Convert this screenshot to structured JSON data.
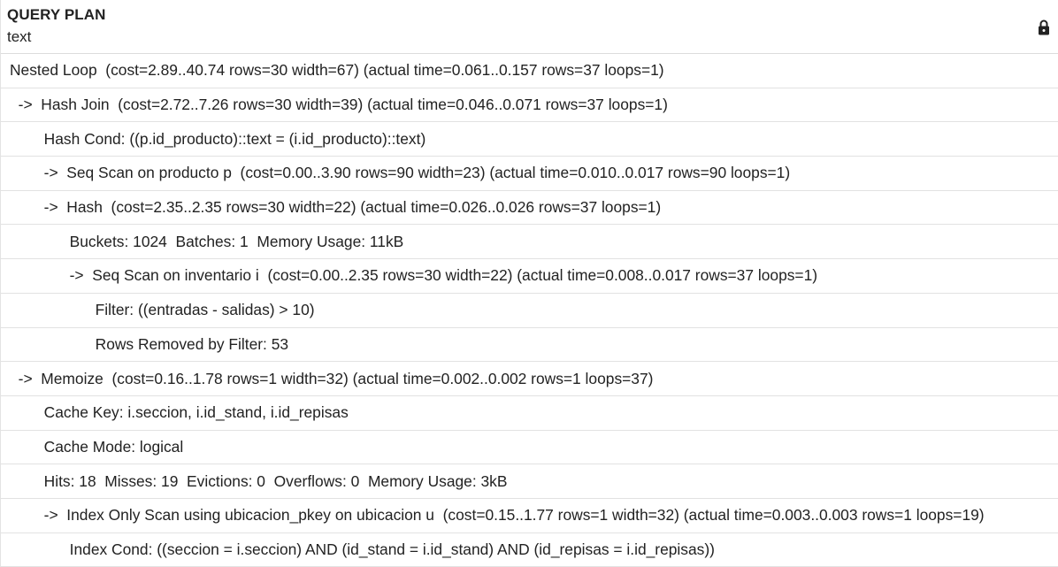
{
  "column": {
    "name": "QUERY PLAN",
    "type": "text",
    "lock_icon": "lock-icon"
  },
  "rows": [
    "Nested Loop  (cost=2.89..40.74 rows=30 width=67) (actual time=0.061..0.157 rows=37 loops=1)",
    "  ->  Hash Join  (cost=2.72..7.26 rows=30 width=39) (actual time=0.046..0.071 rows=37 loops=1)",
    "        Hash Cond: ((p.id_producto)::text = (i.id_producto)::text)",
    "        ->  Seq Scan on producto p  (cost=0.00..3.90 rows=90 width=23) (actual time=0.010..0.017 rows=90 loops=1)",
    "        ->  Hash  (cost=2.35..2.35 rows=30 width=22) (actual time=0.026..0.026 rows=37 loops=1)",
    "              Buckets: 1024  Batches: 1  Memory Usage: 11kB",
    "              ->  Seq Scan on inventario i  (cost=0.00..2.35 rows=30 width=22) (actual time=0.008..0.017 rows=37 loops=1)",
    "                    Filter: ((entradas - salidas) > 10)",
    "                    Rows Removed by Filter: 53",
    "  ->  Memoize  (cost=0.16..1.78 rows=1 width=32) (actual time=0.002..0.002 rows=1 loops=37)",
    "        Cache Key: i.seccion, i.id_stand, i.id_repisas",
    "        Cache Mode: logical",
    "        Hits: 18  Misses: 19  Evictions: 0  Overflows: 0  Memory Usage: 3kB",
    "        ->  Index Only Scan using ubicacion_pkey on ubicacion u  (cost=0.15..1.77 rows=1 width=32) (actual time=0.003..0.003 rows=1 loops=19)",
    "              Index Cond: ((seccion = i.seccion) AND (id_stand = i.id_stand) AND (id_repisas = i.id_repisas))"
  ]
}
